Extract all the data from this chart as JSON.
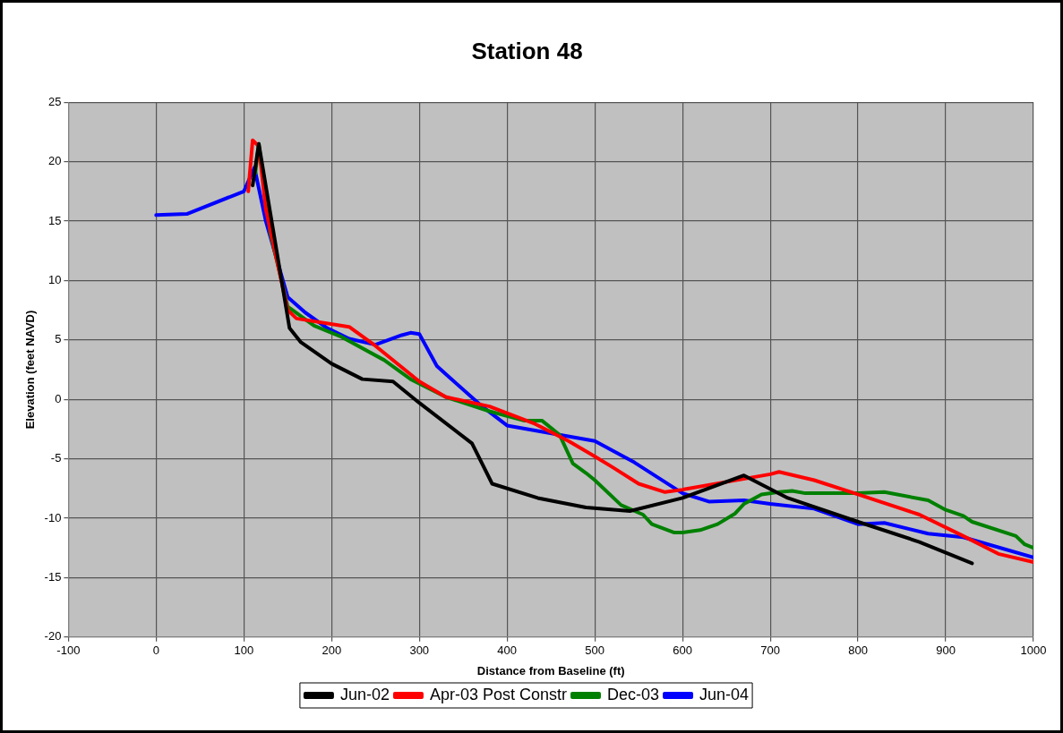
{
  "chart_data": {
    "type": "line",
    "title": "Station 48",
    "xlabel": "Distance from Baseline (ft)",
    "ylabel": "Elevation (feet NAVD)",
    "xlim": [
      -100,
      1000
    ],
    "xticks": [
      -100,
      0,
      100,
      200,
      300,
      400,
      500,
      600,
      700,
      800,
      900,
      1000
    ],
    "ylim": [
      -20,
      25
    ],
    "yticks": [
      -20,
      -15,
      -10,
      -5,
      0,
      5,
      10,
      15,
      20,
      25
    ],
    "grid": true,
    "legend": "bottom",
    "marker": "none",
    "line_style": "solid",
    "series": [
      {
        "name": "Jun-02",
        "color": "#000000",
        "x": [
          110,
          117,
          152,
          165,
          200,
          235,
          270,
          300,
          360,
          383,
          435,
          490,
          540,
          600,
          670,
          720,
          800,
          870,
          930
        ],
        "values": [
          18,
          21.5,
          6,
          4.8,
          3,
          1.7,
          1.5,
          -0.3,
          -3.7,
          -7.1,
          -8.3,
          -9.1,
          -9.4,
          -8.3,
          -6.4,
          -8.3,
          -10.3,
          -12,
          -13.8
        ]
      },
      {
        "name": "Apr-03 Post Constr",
        "color": "#ff0000",
        "x": [
          105,
          110,
          117,
          125,
          150,
          160,
          220,
          250,
          300,
          330,
          380,
          430,
          470,
          500,
          520,
          550,
          580,
          600,
          700,
          710,
          750,
          800,
          870,
          920,
          960,
          1000
        ],
        "values": [
          17.5,
          21.8,
          21.3,
          16,
          7.5,
          6.8,
          6.1,
          4.5,
          1.5,
          0.2,
          -0.6,
          -2,
          -3.5,
          -4.8,
          -5.7,
          -7.1,
          -7.8,
          -7.6,
          -6.3,
          -6.1,
          -6.8,
          -8,
          -9.7,
          -11.5,
          -13,
          -13.7
        ]
      },
      {
        "name": "Dec-03",
        "color": "#008000",
        "x": [
          113,
          117,
          130,
          150,
          180,
          210,
          260,
          290,
          330,
          380,
          420,
          440,
          460,
          475,
          490,
          500,
          530,
          555,
          565,
          590,
          600,
          620,
          640,
          660,
          670,
          675,
          690,
          710,
          725,
          740,
          800,
          830,
          880,
          900,
          920,
          930,
          980,
          990,
          1000
        ],
        "values": [
          19,
          21.5,
          14,
          7.8,
          6.2,
          5.3,
          3.3,
          1.7,
          0.2,
          -1,
          -1.8,
          -1.8,
          -3,
          -5.4,
          -6.2,
          -6.8,
          -8.9,
          -9.7,
          -10.5,
          -11.2,
          -11.2,
          -11,
          -10.5,
          -9.6,
          -8.8,
          -8.6,
          -8,
          -7.8,
          -7.7,
          -7.9,
          -7.9,
          -7.8,
          -8.5,
          -9.3,
          -9.8,
          -10.3,
          -11.5,
          -12.2,
          -12.5
        ]
      },
      {
        "name": "Jun-04",
        "color": "#0000ff",
        "x": [
          0,
          35,
          100,
          112,
          125,
          150,
          170,
          195,
          220,
          250,
          280,
          290,
          300,
          320,
          335,
          370,
          400,
          500,
          545,
          600,
          630,
          670,
          700,
          750,
          800,
          830,
          880,
          920,
          1000
        ],
        "values": [
          15.5,
          15.6,
          17.5,
          19.5,
          15,
          8.6,
          7.3,
          6,
          5.1,
          4.6,
          5.4,
          5.6,
          5.5,
          2.8,
          1.8,
          -0.5,
          -2.2,
          -3.5,
          -5.3,
          -7.9,
          -8.6,
          -8.5,
          -8.8,
          -9.2,
          -10.5,
          -10.4,
          -11.3,
          -11.6,
          -13.3
        ]
      }
    ]
  }
}
